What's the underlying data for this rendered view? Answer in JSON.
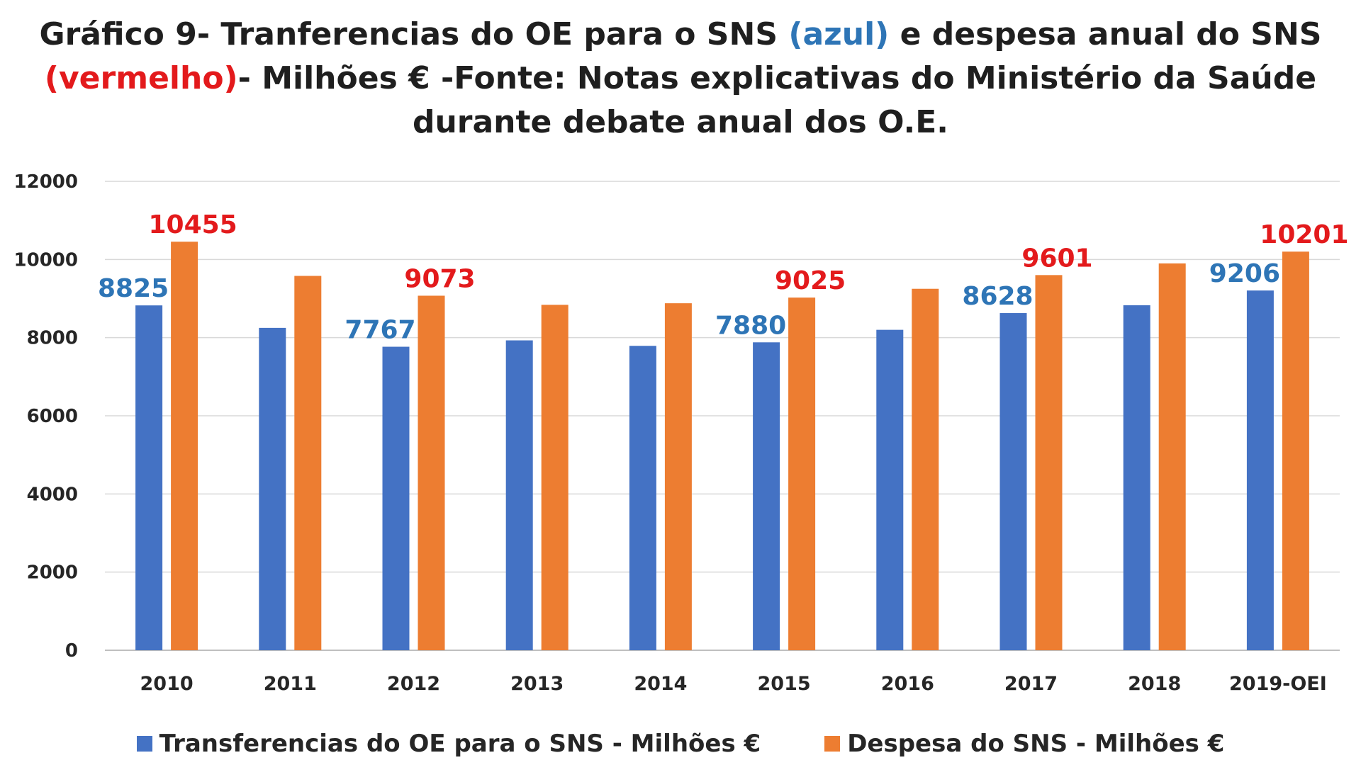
{
  "chart_data": {
    "type": "bar",
    "title": {
      "line1_a": "Gráfico 9- Tranferencias do OE para o SNS ",
      "line1_b": "(azul)",
      "line1_c": " e despesa anual do SNS",
      "line2_a": "(vermelho)",
      "line2_b": "- Milhões € -Fonte: Notas explicativas do Ministério da Saúde",
      "line3": "durante debate anual dos O.E."
    },
    "categories": [
      "2010",
      "2011",
      "2012",
      "2013",
      "2014",
      "2015",
      "2016",
      "2017",
      "2018",
      "2019-OEI"
    ],
    "series": [
      {
        "name": "Transferencias do OE para  o SNS - Milhões €",
        "color": "#4472c4",
        "values": [
          8825,
          8250,
          7767,
          7930,
          7790,
          7880,
          8200,
          8628,
          8830,
          9206
        ],
        "labeled": [
          true,
          false,
          true,
          false,
          false,
          true,
          false,
          true,
          false,
          true
        ]
      },
      {
        "name": "Despesa do SNS - Milhões €",
        "color": "#ed7d31",
        "values": [
          10455,
          9580,
          9073,
          8840,
          8880,
          9025,
          9250,
          9601,
          9900,
          10201
        ],
        "labeled": [
          true,
          false,
          true,
          false,
          false,
          true,
          false,
          true,
          false,
          true
        ]
      }
    ],
    "yticks": [
      "0",
      "2000",
      "4000",
      "6000",
      "8000",
      "10000",
      "12000"
    ],
    "ylim": [
      0,
      12000
    ],
    "grid": true,
    "legend": "bottom",
    "label_colors": {
      "blue": "#2e75b6",
      "red": "#e31a1c"
    }
  }
}
